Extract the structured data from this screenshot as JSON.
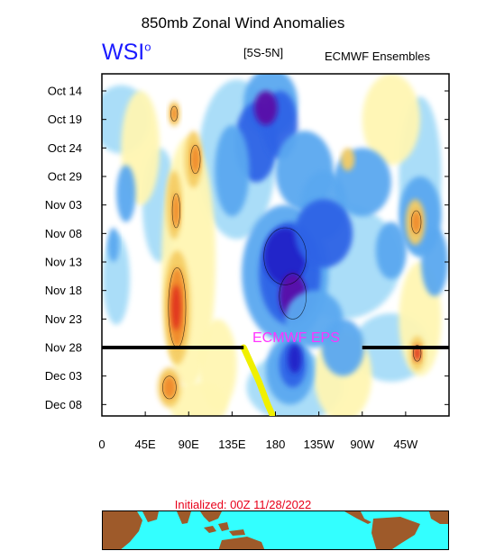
{
  "header": {
    "title": "850mb Zonal Wind Anomalies",
    "logo_text": "WSI",
    "logo_mark": "o",
    "band": "[5S-5N]",
    "model": "ECMWF Ensembles"
  },
  "footer": {
    "initialized": "Initialized: 00Z 11/28/2022"
  },
  "chart_data": {
    "type": "heatmap",
    "title": "850mb Zonal Wind Anomalies",
    "subtitle": "[5S-5N]",
    "x_ticks": [
      "0",
      "45E",
      "90E",
      "135E",
      "180",
      "135W",
      "90W",
      "45W"
    ],
    "x_tick_lon": [
      0,
      45,
      90,
      135,
      180,
      225,
      270,
      315
    ],
    "xlim": [
      0,
      360
    ],
    "y_ticks": [
      "Oct 14",
      "Oct 19",
      "Oct 24",
      "Oct 29",
      "Nov 03",
      "Nov 08",
      "Nov 13",
      "Nov 18",
      "Nov 23",
      "Nov 28",
      "Dec 03",
      "Dec 08"
    ],
    "y_tick_day": [
      0,
      5,
      10,
      15,
      20,
      25,
      30,
      35,
      40,
      45,
      50,
      55
    ],
    "ylim": [
      -3,
      57
    ],
    "forecast_start_day": 45,
    "annotation": "ECMWF EPS",
    "colors": {
      "strong_easterly": "#5a0aa8",
      "easterly_3": "#2222c8",
      "easterly_2": "#2f64e6",
      "easterly_1": "#5aa8f0",
      "easterly_0": "#a6dcf8",
      "westerly_0": "#fff6b3",
      "westerly_1": "#f5cc63",
      "westerly_2": "#f08a2a",
      "westerly_3": "#e0321e",
      "init_line": "#000000",
      "annotation": "#ff33ff",
      "mjo_track": "#f0f000",
      "ocean": "#33ffff",
      "land": "#9e5a2a"
    },
    "grid": false
  }
}
